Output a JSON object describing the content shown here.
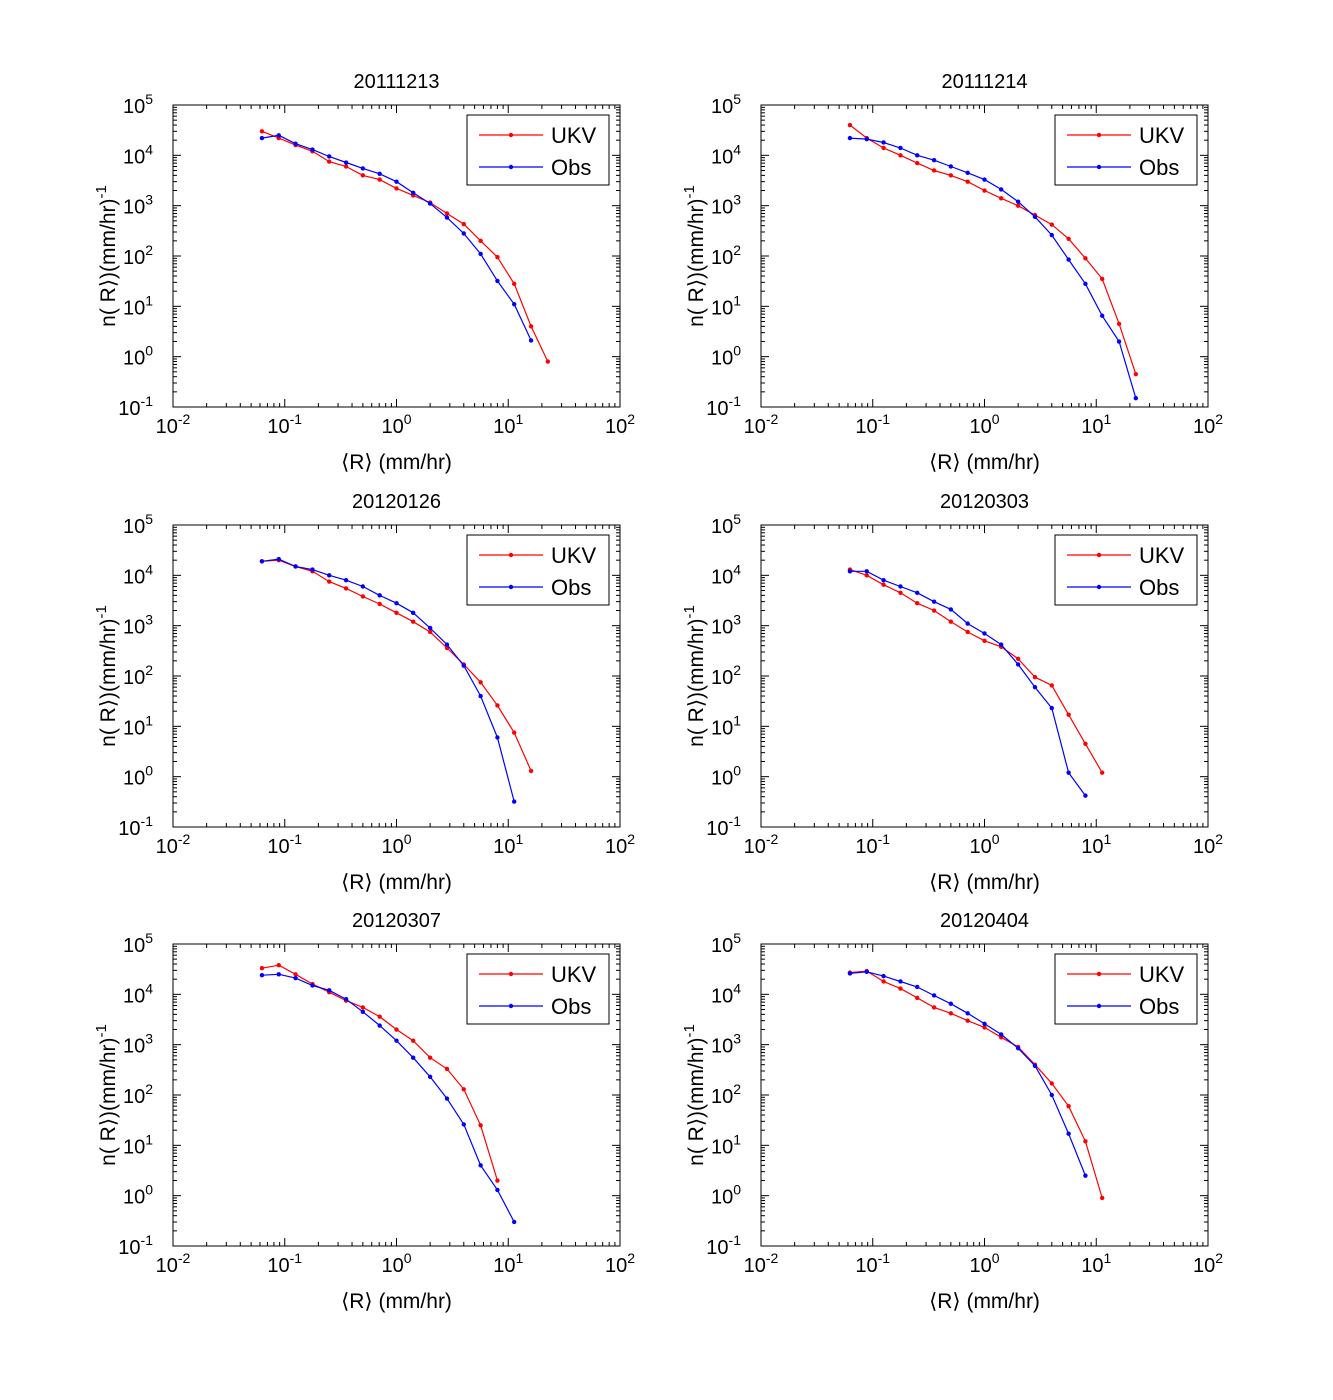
{
  "chart_data": [
    {
      "type": "line",
      "title": "20111213",
      "xlabel": "⟨R⟩ (mm/hr)",
      "ylabel": "n( R⟩)(mm/hr)",
      "ylabel_sup": "-1",
      "xscale": "log",
      "yscale": "log",
      "xlim": [
        0.01,
        100
      ],
      "ylim": [
        0.1,
        100000
      ],
      "grid": false,
      "legend": "top-right",
      "series": [
        {
          "name": "UKV",
          "color": "#ff0000",
          "x": [
            0.0625,
            0.0884,
            0.125,
            0.177,
            0.25,
            0.354,
            0.5,
            0.707,
            1,
            1.41,
            2,
            2.83,
            4,
            5.66,
            8,
            11.3,
            16,
            22.6
          ],
          "y": [
            30000,
            22000,
            16000,
            12000,
            7500,
            6000,
            4000,
            3300,
            2200,
            1600,
            1150,
            700,
            430,
            200,
            95,
            28,
            4,
            0.8
          ]
        },
        {
          "name": "Obs",
          "color": "#0000ff",
          "x": [
            0.0625,
            0.0884,
            0.125,
            0.177,
            0.25,
            0.354,
            0.5,
            0.707,
            1,
            1.41,
            2,
            2.83,
            4,
            5.66,
            8,
            11.3,
            16
          ],
          "y": [
            22000,
            25000,
            17000,
            13000,
            9500,
            7200,
            5500,
            4300,
            3000,
            1800,
            1100,
            580,
            280,
            110,
            32,
            11,
            2.1
          ]
        }
      ]
    },
    {
      "type": "line",
      "title": "20111214",
      "xlabel": "⟨R⟩ (mm/hr)",
      "ylabel": "n( R⟩)(mm/hr)",
      "ylabel_sup": "-1",
      "xscale": "log",
      "yscale": "log",
      "xlim": [
        0.01,
        100
      ],
      "ylim": [
        0.1,
        100000
      ],
      "grid": false,
      "legend": "top-right",
      "series": [
        {
          "name": "UKV",
          "color": "#ff0000",
          "x": [
            0.0625,
            0.0884,
            0.125,
            0.177,
            0.25,
            0.354,
            0.5,
            0.707,
            1,
            1.41,
            2,
            2.83,
            4,
            5.66,
            8,
            11.3,
            16,
            22.6
          ],
          "y": [
            40000,
            22000,
            14000,
            10000,
            7000,
            5000,
            4000,
            3000,
            2000,
            1400,
            1000,
            650,
            420,
            220,
            90,
            35,
            4.5,
            0.45
          ]
        },
        {
          "name": "Obs",
          "color": "#0000ff",
          "x": [
            0.0625,
            0.0884,
            0.125,
            0.177,
            0.25,
            0.354,
            0.5,
            0.707,
            1,
            1.41,
            2,
            2.83,
            4,
            5.66,
            8,
            11.3,
            16,
            22.6
          ],
          "y": [
            22000,
            21000,
            18000,
            14000,
            10000,
            8000,
            6000,
            4500,
            3300,
            2100,
            1200,
            600,
            260,
            85,
            28,
            6.5,
            2,
            0.15
          ]
        }
      ]
    },
    {
      "type": "line",
      "title": "20120126",
      "xlabel": "⟨R⟩ (mm/hr)",
      "ylabel": "n( R⟩)(mm/hr)",
      "ylabel_sup": "-1",
      "xscale": "log",
      "yscale": "log",
      "xlim": [
        0.01,
        100
      ],
      "ylim": [
        0.1,
        100000
      ],
      "grid": false,
      "legend": "top-right",
      "series": [
        {
          "name": "UKV",
          "color": "#ff0000",
          "x": [
            0.0625,
            0.0884,
            0.125,
            0.177,
            0.25,
            0.354,
            0.5,
            0.707,
            1,
            1.41,
            2,
            2.83,
            4,
            5.66,
            8,
            11.3,
            16
          ],
          "y": [
            19000,
            20000,
            15000,
            12000,
            7500,
            5500,
            3800,
            2700,
            1800,
            1200,
            750,
            360,
            170,
            75,
            26,
            7.5,
            1.3
          ]
        },
        {
          "name": "Obs",
          "color": "#0000ff",
          "x": [
            0.0625,
            0.0884,
            0.125,
            0.177,
            0.25,
            0.354,
            0.5,
            0.707,
            1,
            1.41,
            2,
            2.83,
            4,
            5.66,
            8,
            11.3
          ],
          "y": [
            19000,
            21000,
            15000,
            13000,
            10000,
            8000,
            6000,
            4000,
            2800,
            1800,
            900,
            420,
            160,
            40,
            6,
            0.32
          ]
        }
      ]
    },
    {
      "type": "line",
      "title": "20120303",
      "xlabel": "⟨R⟩ (mm/hr)",
      "ylabel": "n( R⟩)(mm/hr)",
      "ylabel_sup": "-1",
      "xscale": "log",
      "yscale": "log",
      "xlim": [
        0.01,
        100
      ],
      "ylim": [
        0.1,
        100000
      ],
      "grid": false,
      "legend": "top-right",
      "series": [
        {
          "name": "UKV",
          "color": "#ff0000",
          "x": [
            0.0625,
            0.0884,
            0.125,
            0.177,
            0.25,
            0.354,
            0.5,
            0.707,
            1,
            1.41,
            2,
            2.83,
            4,
            5.66,
            8,
            11.3
          ],
          "y": [
            13000,
            10000,
            6500,
            4500,
            2800,
            2000,
            1200,
            750,
            500,
            380,
            220,
            95,
            65,
            17,
            4.5,
            1.2
          ]
        },
        {
          "name": "Obs",
          "color": "#0000ff",
          "x": [
            0.0625,
            0.0884,
            0.125,
            0.177,
            0.25,
            0.354,
            0.5,
            0.707,
            1,
            1.41,
            2,
            2.83,
            4,
            5.66,
            8
          ],
          "y": [
            12000,
            12000,
            8000,
            6000,
            4500,
            3000,
            2100,
            1100,
            700,
            420,
            170,
            60,
            23,
            1.2,
            0.42
          ]
        }
      ]
    },
    {
      "type": "line",
      "title": "20120307",
      "xlabel": "⟨R⟩ (mm/hr)",
      "ylabel": "n( R⟩)(mm/hr)",
      "ylabel_sup": "-1",
      "xscale": "log",
      "yscale": "log",
      "xlim": [
        0.01,
        100
      ],
      "ylim": [
        0.1,
        100000
      ],
      "grid": false,
      "legend": "top-right",
      "series": [
        {
          "name": "UKV",
          "color": "#ff0000",
          "x": [
            0.0625,
            0.0884,
            0.125,
            0.177,
            0.25,
            0.354,
            0.5,
            0.707,
            1,
            1.41,
            2,
            2.83,
            4,
            5.66,
            8
          ],
          "y": [
            33000,
            38000,
            25000,
            16000,
            11000,
            7500,
            5500,
            3600,
            2000,
            1200,
            550,
            330,
            130,
            25,
            2
          ]
        },
        {
          "name": "Obs",
          "color": "#0000ff",
          "x": [
            0.0625,
            0.0884,
            0.125,
            0.177,
            0.25,
            0.354,
            0.5,
            0.707,
            1,
            1.41,
            2,
            2.83,
            4,
            5.66,
            8,
            11.3
          ],
          "y": [
            24000,
            25000,
            21000,
            15000,
            12000,
            8000,
            4500,
            2400,
            1200,
            550,
            230,
            85,
            26,
            4,
            1.3,
            0.3
          ]
        }
      ]
    },
    {
      "type": "line",
      "title": "20120404",
      "xlabel": "⟨R⟩ (mm/hr)",
      "ylabel": "n( R⟩)(mm/hr)",
      "ylabel_sup": "-1",
      "xscale": "log",
      "yscale": "log",
      "xlim": [
        0.01,
        100
      ],
      "ylim": [
        0.1,
        100000
      ],
      "grid": false,
      "legend": "top-right",
      "series": [
        {
          "name": "UKV",
          "color": "#ff0000",
          "x": [
            0.0625,
            0.0884,
            0.125,
            0.177,
            0.25,
            0.354,
            0.5,
            0.707,
            1,
            1.41,
            2,
            2.83,
            4,
            5.66,
            8,
            11.3
          ],
          "y": [
            27000,
            29000,
            18000,
            13000,
            8500,
            5500,
            4200,
            3000,
            2200,
            1400,
            900,
            400,
            170,
            60,
            12,
            0.9
          ]
        },
        {
          "name": "Obs",
          "color": "#0000ff",
          "x": [
            0.0625,
            0.0884,
            0.125,
            0.177,
            0.25,
            0.354,
            0.5,
            0.707,
            1,
            1.41,
            2,
            2.83,
            4,
            5.66,
            8
          ],
          "y": [
            26000,
            28000,
            23000,
            18000,
            14000,
            9500,
            6500,
            4200,
            2600,
            1600,
            850,
            380,
            100,
            17,
            2.5
          ]
        }
      ]
    }
  ]
}
